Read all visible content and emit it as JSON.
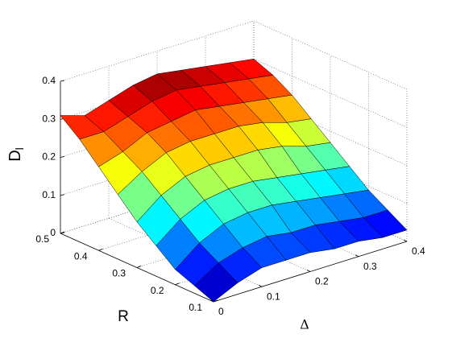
{
  "chart_data": {
    "type": "surface",
    "colormap": "jet",
    "grid": true,
    "xlabel": "Δ",
    "ylabel": "R",
    "zlabel": {
      "base": "D",
      "subscript": "l"
    },
    "x": [
      0,
      0.05,
      0.1,
      0.15,
      0.2,
      0.25,
      0.3,
      0.35,
      0.4
    ],
    "y": [
      0.1,
      0.15,
      0.2,
      0.25,
      0.3,
      0.35,
      0.4,
      0.45,
      0.5
    ],
    "z": [
      [
        0.0,
        0.03,
        0.05,
        0.05,
        0.05,
        0.04,
        0.04,
        0.03,
        0.03
      ],
      [
        0.02,
        0.06,
        0.08,
        0.09,
        0.08,
        0.08,
        0.07,
        0.06,
        0.06
      ],
      [
        0.04,
        0.09,
        0.12,
        0.13,
        0.13,
        0.12,
        0.11,
        0.1,
        0.09
      ],
      [
        0.08,
        0.13,
        0.16,
        0.17,
        0.17,
        0.16,
        0.15,
        0.14,
        0.13
      ],
      [
        0.12,
        0.17,
        0.2,
        0.21,
        0.21,
        0.21,
        0.2,
        0.18,
        0.17
      ],
      [
        0.17,
        0.21,
        0.24,
        0.25,
        0.25,
        0.25,
        0.24,
        0.22,
        0.21
      ],
      [
        0.22,
        0.24,
        0.27,
        0.28,
        0.29,
        0.28,
        0.27,
        0.26,
        0.25
      ],
      [
        0.27,
        0.27,
        0.29,
        0.31,
        0.32,
        0.31,
        0.3,
        0.29,
        0.28
      ],
      [
        0.31,
        0.29,
        0.31,
        0.33,
        0.34,
        0.33,
        0.32,
        0.31,
        0.3
      ]
    ],
    "xlim": [
      0,
      0.4
    ],
    "xticks": [
      0,
      0.1,
      0.2,
      0.3,
      0.4
    ],
    "ylim": [
      0.1,
      0.5
    ],
    "yticks": [
      0.1,
      0.2,
      0.3,
      0.4,
      0.5
    ],
    "zlim": [
      0,
      0.4
    ],
    "zticks": [
      0,
      0.1,
      0.2,
      0.3,
      0.4
    ]
  }
}
